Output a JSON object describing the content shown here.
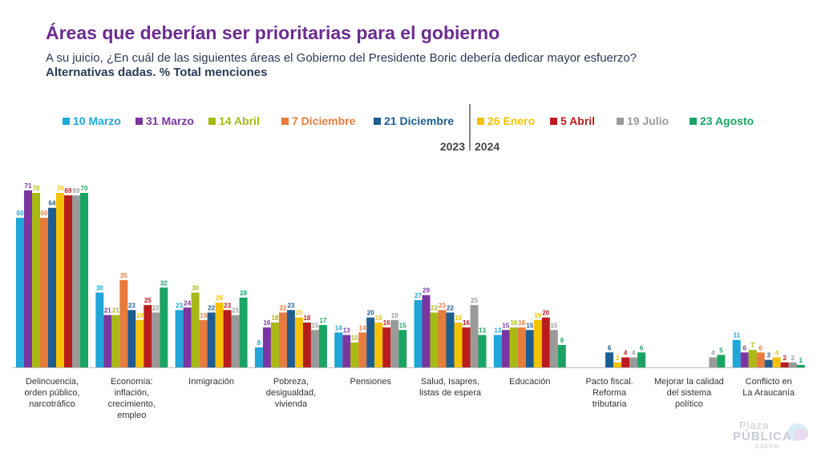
{
  "header": {
    "title": "Áreas que deberían ser prioritarias para el gobierno",
    "subtitle": "A su juicio, ¿En cuál de las siguientes áreas el Gobierno del Presidente Boric debería dedicar mayor esfuerzo?",
    "note": "Alternativas dadas. % Total menciones"
  },
  "legend": {
    "year_left": "2023",
    "year_right": "2024"
  },
  "branding": {
    "line1": "Plaza",
    "line2": "PÚBLICA",
    "line3": "CADEM"
  },
  "chart_data": {
    "type": "bar",
    "categories": [
      [
        "Delincuencia,",
        "orden público,",
        "narcotráfico"
      ],
      [
        "Economía:",
        "inflación,",
        "crecimiento,",
        "empleo"
      ],
      [
        "Inmigración"
      ],
      [
        "Pobreza,",
        "desigualdad,",
        "vivienda"
      ],
      [
        "Pensiones"
      ],
      [
        "Salud, Isapres,",
        "listas de espera"
      ],
      [
        "Educación"
      ],
      [
        "Pacto fiscal.",
        "Reforma",
        "tributaria"
      ],
      [
        "Mejorar la calidad",
        "del sistema",
        "político"
      ],
      [
        "Conflicto en",
        "La Araucanía"
      ]
    ],
    "series": [
      {
        "name": "10 Marzo",
        "color": "#1ea7d8",
        "values": [
          60,
          30,
          23,
          8,
          14,
          27,
          13,
          null,
          null,
          11
        ]
      },
      {
        "name": "31 Marzo",
        "color": "#7a35a0",
        "values": [
          71,
          21,
          24,
          16,
          13,
          29,
          15,
          null,
          null,
          6
        ]
      },
      {
        "name": "14 Abril",
        "color": "#a8b914",
        "values": [
          70,
          21,
          30,
          18,
          10,
          22,
          16,
          null,
          null,
          7
        ]
      },
      {
        "name": "7 Diciembre",
        "color": "#e97b3b",
        "values": [
          60,
          35,
          19,
          22,
          14,
          23,
          16,
          null,
          null,
          6
        ]
      },
      {
        "name": "21 Diciembre",
        "color": "#1d5d90",
        "values": [
          64,
          23,
          22,
          23,
          20,
          22,
          15,
          6,
          null,
          3
        ]
      },
      {
        "name": "26 Enero",
        "color": "#f6c200",
        "values": [
          70,
          19,
          26,
          20,
          18,
          18,
          19,
          2,
          null,
          4
        ]
      },
      {
        "name": "5 Abril",
        "color": "#b91c1c",
        "values": [
          69,
          25,
          23,
          18,
          16,
          16,
          20,
          4,
          null,
          2
        ]
      },
      {
        "name": "19 Julio",
        "color": "#9a9a9a",
        "values": [
          69,
          22,
          21,
          15,
          19,
          25,
          15,
          4,
          4,
          2
        ]
      },
      {
        "name": "23 Agosto",
        "color": "#19a463",
        "values": [
          70,
          32,
          28,
          17,
          15,
          13,
          9,
          6,
          5,
          1
        ]
      }
    ],
    "year_split_after_series": 5,
    "ylim": [
      0,
      75
    ],
    "grid": false,
    "legend_position": "top"
  }
}
